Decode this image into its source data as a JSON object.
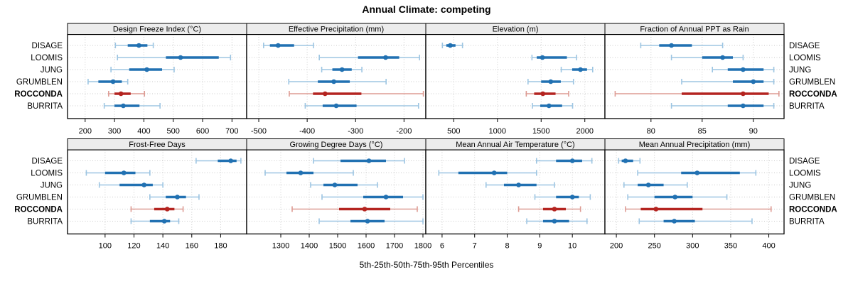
{
  "figure": {
    "title": "Annual Climate: competing",
    "xlabel": "5th-25th-50th-75th-95th Percentiles"
  },
  "sites": [
    "DISAGE",
    "LOOMIS",
    "JUNG",
    "GRUMBLEN",
    "ROCCONDA",
    "BURRITA"
  ],
  "highlight_site": "ROCCONDA",
  "colors": {
    "blue_dark": "#2171b2",
    "blue_light": "#9dc5e2",
    "red_dark": "#b42420",
    "red_light": "#dd9b93",
    "strip_bg": "#ececec",
    "grid": "#c9c9c9",
    "border": "#000000",
    "text": "#000000"
  },
  "chart_data": [
    {
      "type": "dotplot-interval",
      "row": 0,
      "col": 0,
      "title": "Design Freeze Index (°C)",
      "xlim": [
        140,
        750
      ],
      "ticks": [
        200,
        300,
        400,
        500,
        600,
        700
      ],
      "percentiles": [
        "5th",
        "25th",
        "50th",
        "75th",
        "95th"
      ],
      "series": [
        {
          "name": "DISAGE",
          "values": [
            303,
            345,
            383,
            412,
            432
          ]
        },
        {
          "name": "LOOMIS",
          "values": [
            310,
            475,
            525,
            655,
            695
          ]
        },
        {
          "name": "JUNG",
          "values": [
            288,
            350,
            410,
            462,
            503
          ]
        },
        {
          "name": "GRUMBLEN",
          "values": [
            210,
            245,
            295,
            325,
            345
          ]
        },
        {
          "name": "ROCCONDA",
          "values": [
            280,
            300,
            322,
            355,
            402
          ]
        },
        {
          "name": "BURRITA",
          "values": [
            265,
            300,
            330,
            385,
            455
          ]
        }
      ]
    },
    {
      "type": "dotplot-interval",
      "row": 0,
      "col": 1,
      "title": "Effective Precipitation (mm)",
      "xlim": [
        -525,
        -155
      ],
      "ticks": [
        -500,
        -400,
        -300,
        -200
      ],
      "percentiles": [
        "5th",
        "25th",
        "50th",
        "75th",
        "95th"
      ],
      "series": [
        {
          "name": "DISAGE",
          "values": [
            -490,
            -477,
            -460,
            -427,
            -387
          ]
        },
        {
          "name": "LOOMIS",
          "values": [
            -375,
            -295,
            -238,
            -210,
            -168
          ]
        },
        {
          "name": "JUNG",
          "values": [
            -370,
            -348,
            -328,
            -308,
            -287
          ]
        },
        {
          "name": "GRUMBLEN",
          "values": [
            -438,
            -378,
            -345,
            -312,
            -237
          ]
        },
        {
          "name": "ROCCONDA",
          "values": [
            -437,
            -388,
            -363,
            -288,
            -160
          ]
        },
        {
          "name": "BURRITA",
          "values": [
            -404,
            -368,
            -340,
            -298,
            -170
          ]
        }
      ]
    },
    {
      "type": "dotplot-interval",
      "row": 0,
      "col": 2,
      "title": "Elevation (m)",
      "xlim": [
        180,
        2230
      ],
      "ticks": [
        500,
        1000,
        1500,
        2000
      ],
      "percentiles": [
        "5th",
        "25th",
        "50th",
        "75th",
        "95th"
      ],
      "series": [
        {
          "name": "DISAGE",
          "values": [
            370,
            415,
            460,
            520,
            600
          ]
        },
        {
          "name": "LOOMIS",
          "values": [
            1395,
            1450,
            1515,
            1795,
            1905
          ]
        },
        {
          "name": "JUNG",
          "values": [
            1730,
            1855,
            1950,
            2025,
            2090
          ]
        },
        {
          "name": "GRUMBLEN",
          "values": [
            1350,
            1500,
            1610,
            1725,
            1870
          ]
        },
        {
          "name": "ROCCONDA",
          "values": [
            1330,
            1420,
            1520,
            1665,
            1815
          ]
        },
        {
          "name": "BURRITA",
          "values": [
            1400,
            1490,
            1590,
            1740,
            1860
          ]
        }
      ]
    },
    {
      "type": "dotplot-interval",
      "row": 0,
      "col": 3,
      "title": "Fraction of Annual PPT as Rain",
      "xlim": [
        75.5,
        93
      ],
      "ticks": [
        80,
        85,
        90
      ],
      "percentiles": [
        "5th",
        "25th",
        "50th",
        "75th",
        "95th"
      ],
      "series": [
        {
          "name": "DISAGE",
          "values": [
            79,
            80.8,
            82,
            84,
            87
          ]
        },
        {
          "name": "LOOMIS",
          "values": [
            82,
            85,
            87,
            88,
            89
          ]
        },
        {
          "name": "JUNG",
          "values": [
            86,
            87.5,
            89,
            91,
            92
          ]
        },
        {
          "name": "GRUMBLEN",
          "values": [
            83,
            88,
            90,
            91,
            92
          ]
        },
        {
          "name": "ROCCONDA",
          "values": [
            76.5,
            83,
            89,
            91.5,
            92.5
          ]
        },
        {
          "name": "BURRITA",
          "values": [
            82,
            87.5,
            89,
            91,
            92
          ]
        }
      ]
    },
    {
      "type": "dotplot-interval",
      "row": 1,
      "col": 0,
      "title": "Frost-Free Days",
      "xlim": [
        74,
        198
      ],
      "ticks": [
        100,
        120,
        140,
        160,
        180
      ],
      "percentiles": [
        "5th",
        "25th",
        "50th",
        "75th",
        "95th"
      ],
      "series": [
        {
          "name": "DISAGE",
          "values": [
            163,
            178,
            187,
            191,
            194
          ]
        },
        {
          "name": "LOOMIS",
          "values": [
            87,
            100,
            113,
            121,
            131
          ]
        },
        {
          "name": "JUNG",
          "values": [
            96,
            110,
            127,
            133,
            140
          ]
        },
        {
          "name": "GRUMBLEN",
          "values": [
            131,
            142,
            150,
            156,
            165
          ]
        },
        {
          "name": "ROCCONDA",
          "values": [
            118,
            134,
            143,
            148,
            154
          ]
        },
        {
          "name": "BURRITA",
          "values": [
            118,
            131,
            141,
            145,
            151
          ]
        }
      ]
    },
    {
      "type": "dotplot-interval",
      "row": 1,
      "col": 1,
      "title": "Growing Degree Days (°C)",
      "xlim": [
        1180,
        1810
      ],
      "ticks": [
        1300,
        1400,
        1500,
        1600,
        1700,
        1800
      ],
      "percentiles": [
        "5th",
        "25th",
        "50th",
        "75th",
        "95th"
      ],
      "series": [
        {
          "name": "DISAGE",
          "values": [
            1415,
            1510,
            1610,
            1670,
            1735
          ]
        },
        {
          "name": "LOOMIS",
          "values": [
            1245,
            1320,
            1370,
            1415,
            1555
          ]
        },
        {
          "name": "JUNG",
          "values": [
            1405,
            1450,
            1490,
            1570,
            1640
          ]
        },
        {
          "name": "GRUMBLEN",
          "values": [
            1445,
            1590,
            1670,
            1730,
            1800
          ]
        },
        {
          "name": "ROCCONDA",
          "values": [
            1340,
            1505,
            1595,
            1685,
            1780
          ]
        },
        {
          "name": "BURRITA",
          "values": [
            1435,
            1545,
            1605,
            1665,
            1800
          ]
        }
      ]
    },
    {
      "type": "dotplot-interval",
      "row": 1,
      "col": 2,
      "title": "Mean Annual Air Temperature (°C)",
      "xlim": [
        5.5,
        11
      ],
      "ticks": [
        6,
        7,
        8,
        9,
        10
      ],
      "percentiles": [
        "5th",
        "25th",
        "50th",
        "75th",
        "95th"
      ],
      "series": [
        {
          "name": "DISAGE",
          "values": [
            8.9,
            9.5,
            10.0,
            10.3,
            10.6
          ]
        },
        {
          "name": "LOOMIS",
          "values": [
            5.9,
            6.5,
            7.6,
            8.0,
            8.9
          ]
        },
        {
          "name": "JUNG",
          "values": [
            7.35,
            7.9,
            8.35,
            8.9,
            9.45
          ]
        },
        {
          "name": "GRUMBLEN",
          "values": [
            8.85,
            9.5,
            10.0,
            10.2,
            10.55
          ]
        },
        {
          "name": "ROCCONDA",
          "values": [
            8.35,
            9.1,
            9.45,
            9.8,
            10.25
          ]
        },
        {
          "name": "BURRITA",
          "values": [
            8.6,
            9.1,
            9.45,
            9.9,
            10.45
          ]
        }
      ]
    },
    {
      "type": "dotplot-interval",
      "row": 1,
      "col": 3,
      "title": "Mean Annual Precipitation (mm)",
      "xlim": [
        185,
        420
      ],
      "ticks": [
        200,
        250,
        300,
        350,
        400
      ],
      "percentiles": [
        "5th",
        "25th",
        "50th",
        "75th",
        "95th"
      ],
      "series": [
        {
          "name": "DISAGE",
          "values": [
            203,
            207,
            212,
            222,
            231
          ]
        },
        {
          "name": "LOOMIS",
          "values": [
            228,
            285,
            306,
            362,
            383
          ]
        },
        {
          "name": "JUNG",
          "values": [
            210,
            228,
            242,
            262,
            293
          ]
        },
        {
          "name": "GRUMBLEN",
          "values": [
            215,
            250,
            277,
            300,
            345
          ]
        },
        {
          "name": "ROCCONDA",
          "values": [
            212,
            232,
            252,
            313,
            403
          ]
        },
        {
          "name": "BURRITA",
          "values": [
            230,
            262,
            276,
            303,
            378
          ]
        }
      ]
    }
  ]
}
